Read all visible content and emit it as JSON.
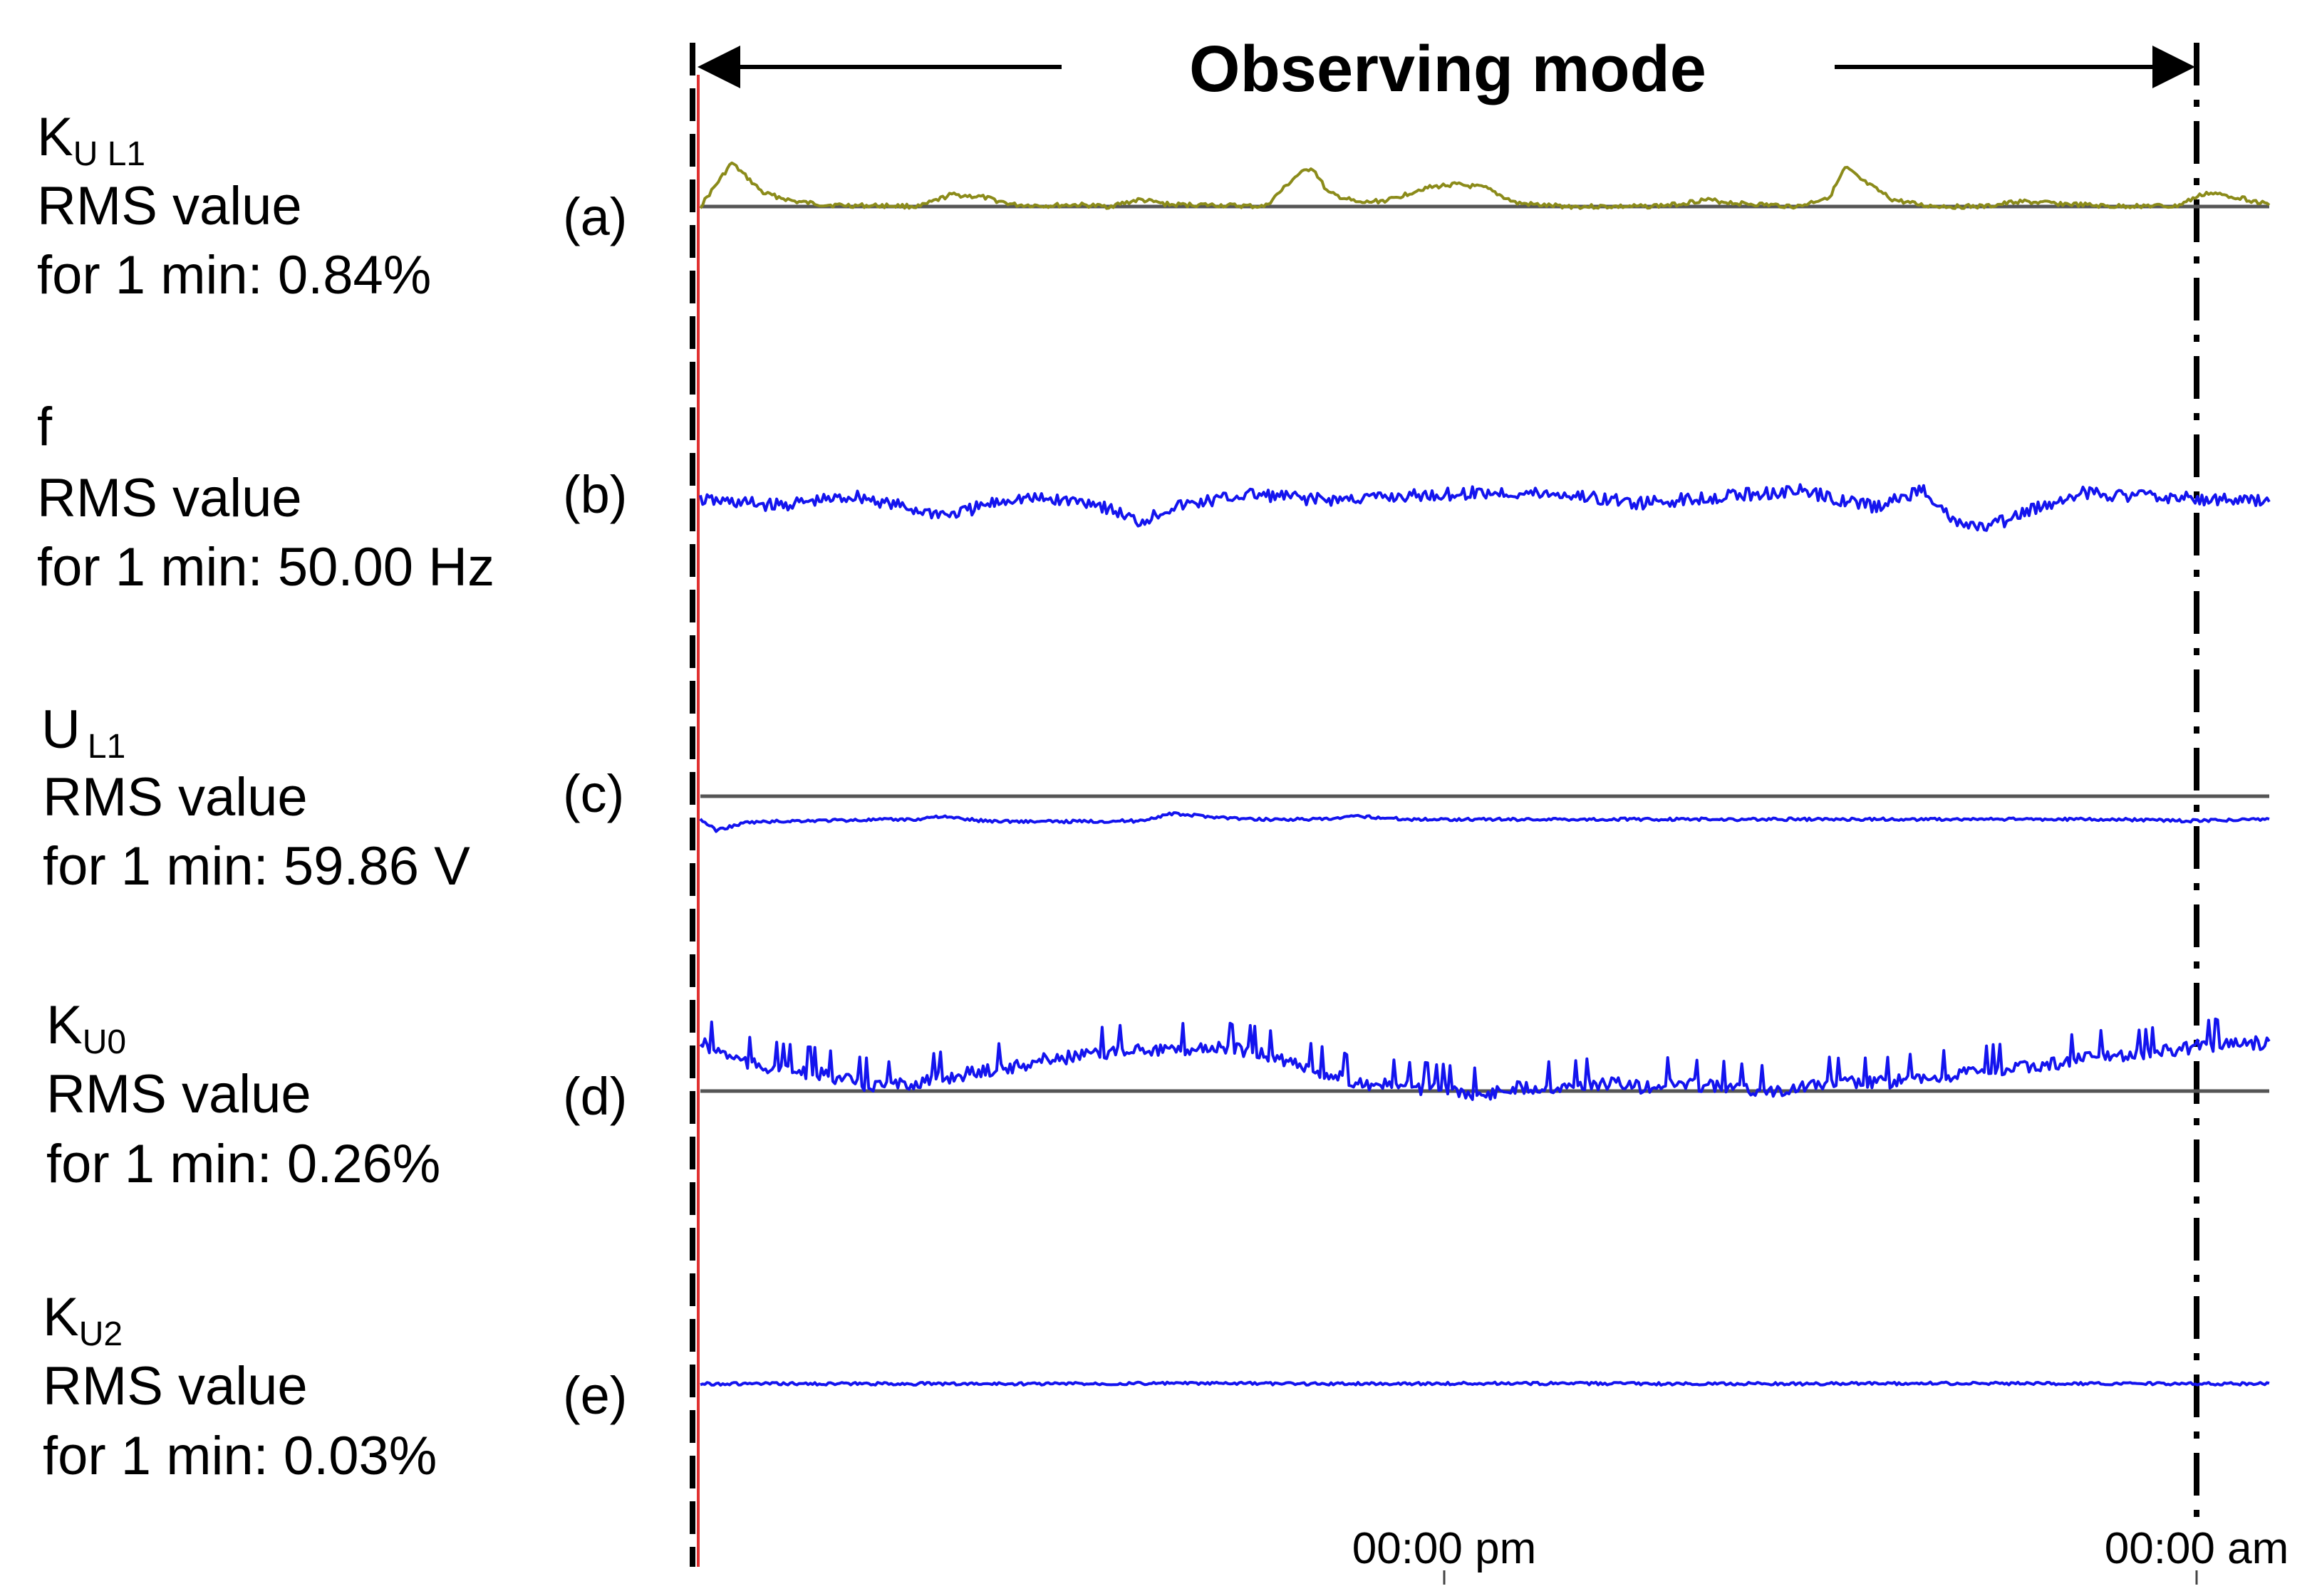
{
  "chart_data": {
    "type": "line",
    "title": "Observing mode",
    "time_ticks": [
      "00:00 pm",
      "00:00 am"
    ],
    "panels": [
      {
        "id": "a",
        "panel_label": "(a)",
        "symbol": "K",
        "subscript": "U L1",
        "line1": "RMS value",
        "line2": "for 1 min: 0.84%",
        "reference_line": true,
        "reference_level": 0.84,
        "series": [
          {
            "name": "KU L1",
            "color": "#8b8b1a",
            "x": [
              0,
              2,
              4,
              6,
              8,
              10,
              12,
              14,
              16,
              18,
              20,
              22,
              24,
              26,
              28,
              30,
              32,
              34,
              36,
              38,
              39,
              40,
              42,
              44,
              46,
              48,
              50,
              52,
              54,
              56,
              58,
              60,
              62,
              64,
              66,
              68,
              70,
              72,
              73,
              74,
              76,
              78,
              80,
              82,
              84,
              86,
              88,
              90,
              92,
              94,
              96,
              98,
              100
            ],
            "y": [
              0.84,
              1.35,
              1.0,
              0.9,
              0.86,
              0.85,
              0.85,
              0.84,
              0.98,
              0.95,
              0.86,
              0.85,
              0.86,
              0.84,
              0.92,
              0.86,
              0.86,
              0.85,
              0.84,
              1.2,
              1.3,
              1.0,
              0.88,
              0.92,
              1.05,
              1.1,
              1.06,
              0.88,
              0.85,
              0.84,
              0.84,
              0.84,
              0.86,
              0.92,
              0.88,
              0.86,
              0.84,
              0.96,
              1.3,
              1.15,
              0.92,
              0.85,
              0.84,
              0.84,
              0.9,
              0.88,
              0.86,
              0.84,
              0.85,
              0.84,
              1.0,
              0.95,
              0.86
            ]
          }
        ]
      },
      {
        "id": "b",
        "panel_label": "(b)",
        "symbol": "f",
        "subscript": "",
        "line1": "RMS value",
        "line2": "for 1 min: 50.00 Hz",
        "reference_line": false,
        "reference_level": 50.0,
        "series": [
          {
            "name": "f",
            "color": "#1414ee",
            "x": [
              0,
              5,
              10,
              14,
              16,
              20,
              25,
              28,
              30,
              35,
              40,
              45,
              50,
              55,
              60,
              65,
              70,
              75,
              78,
              80,
              82,
              85,
              88,
              90,
              95,
              100
            ],
            "y": [
              50.0,
              49.97,
              50.02,
              49.94,
              49.92,
              50.01,
              49.99,
              49.88,
              49.96,
              50.03,
              50.0,
              50.02,
              50.04,
              50.03,
              49.98,
              50.02,
              50.05,
              49.96,
              50.06,
              49.87,
              49.85,
              49.95,
              50.04,
              50.03,
              50.01,
              49.99
            ]
          }
        ]
      },
      {
        "id": "c",
        "panel_label": "(c)",
        "symbol": "U",
        "subscript": "L1",
        "line1": "RMS value",
        "line2": "for 1 min: 59.86 V",
        "reference_line": true,
        "reference_level": 60.0,
        "series": [
          {
            "name": "U L1",
            "color": "#1414ee",
            "x": [
              0,
              1,
              3,
              6,
              10,
              14,
              15,
              18,
              22,
              28,
              30,
              35,
              40,
              42,
              45,
              50,
              55,
              60,
              65,
              70,
              75,
              80,
              85,
              90,
              95,
              100
            ],
            "y": [
              59.86,
              59.72,
              59.82,
              59.84,
              59.85,
              59.86,
              59.9,
              59.84,
              59.83,
              59.84,
              59.93,
              59.86,
              59.86,
              59.9,
              59.86,
              59.86,
              59.86,
              59.86,
              59.86,
              59.86,
              59.86,
              59.86,
              59.86,
              59.86,
              59.84,
              59.86
            ]
          }
        ]
      },
      {
        "id": "d",
        "panel_label": "(d)",
        "symbol": "K",
        "subscript": "U0",
        "line1": "RMS value",
        "line2": "for 1 min: 0.26%",
        "reference_line": true,
        "reference_level": 0.26,
        "series": [
          {
            "name": "KU0",
            "color": "#1414ee",
            "x": [
              0,
              3,
              6,
              8,
              10,
              12,
              15,
              18,
              20,
              22,
              25,
              28,
              30,
              32,
              35,
              38,
              40,
              42,
              45,
              48,
              50,
              52,
              55,
              58,
              60,
              62,
              65,
              68,
              70,
              72,
              75,
              78,
              80,
              82,
              85,
              88,
              90,
              92,
              95,
              98,
              100
            ],
            "y": [
              0.38,
              0.33,
              0.31,
              0.3,
              0.28,
              0.27,
              0.29,
              0.31,
              0.32,
              0.34,
              0.35,
              0.37,
              0.36,
              0.37,
              0.36,
              0.33,
              0.3,
              0.28,
              0.27,
              0.26,
              0.25,
              0.27,
              0.27,
              0.28,
              0.27,
              0.28,
              0.27,
              0.26,
              0.27,
              0.28,
              0.28,
              0.29,
              0.3,
              0.31,
              0.32,
              0.34,
              0.35,
              0.35,
              0.37,
              0.38,
              0.38
            ]
          }
        ]
      },
      {
        "id": "e",
        "panel_label": "(e)",
        "symbol": "K",
        "subscript": "U2",
        "line1": "RMS value",
        "line2": "for 1 min: 0.03%",
        "reference_line": false,
        "reference_level": 0.03,
        "series": [
          {
            "name": "KU2",
            "color": "#1414ee",
            "x": [
              0,
              10,
              20,
              30,
              40,
              50,
              60,
              70,
              80,
              90,
              100
            ],
            "y": [
              0.03,
              0.03,
              0.03,
              0.031,
              0.03,
              0.031,
              0.03,
              0.03,
              0.031,
              0.03,
              0.03
            ]
          }
        ]
      }
    ],
    "xlabel": "",
    "ylabel": ""
  },
  "colors": {
    "axis": "#000000",
    "reference": "#555555",
    "start_marker": "#e03030"
  }
}
